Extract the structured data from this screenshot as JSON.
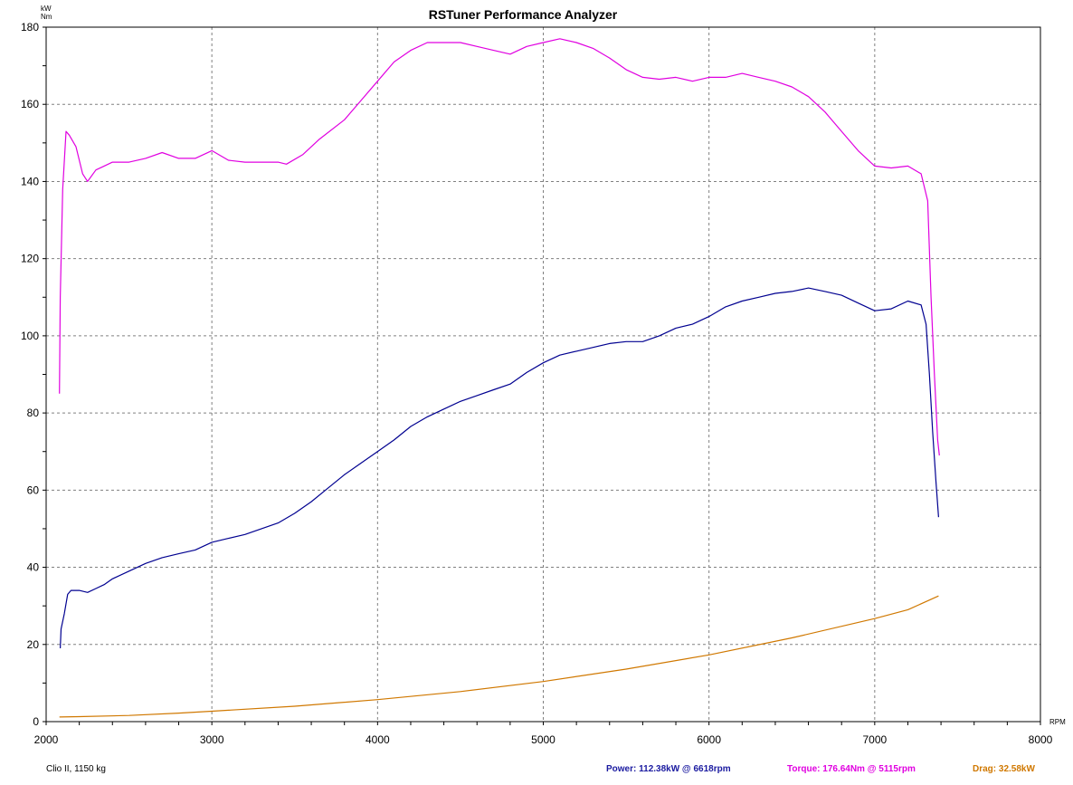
{
  "chart_data": {
    "type": "line",
    "title": "RSTuner Performance Analyzer",
    "y_unit_lines": [
      "kW",
      "Nm"
    ],
    "xlabel": "RPM",
    "xlim": [
      2000,
      8000
    ],
    "ylim": [
      0,
      180
    ],
    "x_ticks": [
      2000,
      3000,
      4000,
      5000,
      6000,
      7000,
      8000
    ],
    "y_ticks": [
      0,
      20,
      40,
      60,
      80,
      100,
      120,
      140,
      160,
      180
    ],
    "grid": true,
    "series": [
      {
        "id": "torque",
        "color": "#e000e0",
        "points": [
          [
            2080,
            85
          ],
          [
            2085,
            110
          ],
          [
            2100,
            138
          ],
          [
            2120,
            153
          ],
          [
            2140,
            152
          ],
          [
            2180,
            149
          ],
          [
            2220,
            142
          ],
          [
            2250,
            140
          ],
          [
            2300,
            143
          ],
          [
            2350,
            144
          ],
          [
            2400,
            145
          ],
          [
            2500,
            145
          ],
          [
            2600,
            146
          ],
          [
            2700,
            147.5
          ],
          [
            2800,
            146
          ],
          [
            2900,
            146
          ],
          [
            3000,
            148
          ],
          [
            3100,
            145.5
          ],
          [
            3200,
            145
          ],
          [
            3300,
            145
          ],
          [
            3400,
            145
          ],
          [
            3450,
            144.5
          ],
          [
            3550,
            147
          ],
          [
            3650,
            151
          ],
          [
            3800,
            156
          ],
          [
            3900,
            161
          ],
          [
            4000,
            166
          ],
          [
            4100,
            171
          ],
          [
            4200,
            174
          ],
          [
            4300,
            176
          ],
          [
            4400,
            176
          ],
          [
            4500,
            176
          ],
          [
            4600,
            175
          ],
          [
            4700,
            174
          ],
          [
            4800,
            173
          ],
          [
            4900,
            175
          ],
          [
            5000,
            176
          ],
          [
            5100,
            177
          ],
          [
            5200,
            176
          ],
          [
            5300,
            174.5
          ],
          [
            5400,
            172
          ],
          [
            5500,
            169
          ],
          [
            5600,
            167
          ],
          [
            5700,
            166.5
          ],
          [
            5800,
            167
          ],
          [
            5900,
            166
          ],
          [
            6000,
            167
          ],
          [
            6100,
            167
          ],
          [
            6200,
            168
          ],
          [
            6300,
            167
          ],
          [
            6400,
            166
          ],
          [
            6500,
            164.5
          ],
          [
            6600,
            162
          ],
          [
            6700,
            158
          ],
          [
            6800,
            153
          ],
          [
            6900,
            148
          ],
          [
            7000,
            144
          ],
          [
            7100,
            143.5
          ],
          [
            7200,
            144
          ],
          [
            7280,
            142
          ],
          [
            7320,
            135
          ],
          [
            7340,
            110
          ],
          [
            7360,
            90
          ],
          [
            7380,
            73
          ],
          [
            7390,
            69
          ]
        ]
      },
      {
        "id": "power",
        "color": "#000090",
        "points": [
          [
            2085,
            19
          ],
          [
            2090,
            24
          ],
          [
            2110,
            28
          ],
          [
            2130,
            33
          ],
          [
            2150,
            34
          ],
          [
            2200,
            34
          ],
          [
            2250,
            33.5
          ],
          [
            2300,
            34.5
          ],
          [
            2350,
            35.5
          ],
          [
            2400,
            37
          ],
          [
            2500,
            39
          ],
          [
            2600,
            41
          ],
          [
            2700,
            42.5
          ],
          [
            2800,
            43.5
          ],
          [
            2900,
            44.5
          ],
          [
            3000,
            46.5
          ],
          [
            3100,
            47.5
          ],
          [
            3200,
            48.5
          ],
          [
            3300,
            50
          ],
          [
            3400,
            51.5
          ],
          [
            3500,
            54
          ],
          [
            3600,
            57
          ],
          [
            3700,
            60.5
          ],
          [
            3800,
            64
          ],
          [
            3900,
            67
          ],
          [
            4000,
            70
          ],
          [
            4100,
            73
          ],
          [
            4200,
            76.5
          ],
          [
            4300,
            79
          ],
          [
            4400,
            81
          ],
          [
            4500,
            83
          ],
          [
            4600,
            84.5
          ],
          [
            4700,
            86
          ],
          [
            4800,
            87.5
          ],
          [
            4900,
            90.5
          ],
          [
            5000,
            93
          ],
          [
            5100,
            95
          ],
          [
            5200,
            96
          ],
          [
            5300,
            97
          ],
          [
            5400,
            98
          ],
          [
            5500,
            98.5
          ],
          [
            5600,
            98.5
          ],
          [
            5700,
            100
          ],
          [
            5800,
            102
          ],
          [
            5900,
            103
          ],
          [
            6000,
            105
          ],
          [
            6100,
            107.5
          ],
          [
            6200,
            109
          ],
          [
            6300,
            110
          ],
          [
            6400,
            111
          ],
          [
            6500,
            111.5
          ],
          [
            6600,
            112.4
          ],
          [
            6700,
            111.5
          ],
          [
            6800,
            110.5
          ],
          [
            6900,
            108.5
          ],
          [
            7000,
            106.5
          ],
          [
            7100,
            107
          ],
          [
            7200,
            109
          ],
          [
            7280,
            108
          ],
          [
            7310,
            103
          ],
          [
            7330,
            90
          ],
          [
            7350,
            75
          ],
          [
            7370,
            62
          ],
          [
            7385,
            53
          ]
        ]
      },
      {
        "id": "drag",
        "color": "#d07800",
        "points": [
          [
            2080,
            1.2
          ],
          [
            2200,
            1.3
          ],
          [
            2500,
            1.6
          ],
          [
            2800,
            2.2
          ],
          [
            3000,
            2.7
          ],
          [
            3500,
            4.0
          ],
          [
            4000,
            5.7
          ],
          [
            4500,
            7.8
          ],
          [
            5000,
            10.4
          ],
          [
            5500,
            13.6
          ],
          [
            6000,
            17.3
          ],
          [
            6500,
            21.7
          ],
          [
            7000,
            26.7
          ],
          [
            7200,
            29.0
          ],
          [
            7385,
            32.58
          ]
        ]
      }
    ],
    "footer": {
      "vehicle": "Clio II, 1150 kg",
      "power": "Power: 112.38kW @ 6618rpm",
      "torque": "Torque: 176.64Nm @ 5115rpm",
      "drag": "Drag: 32.58kW"
    }
  }
}
